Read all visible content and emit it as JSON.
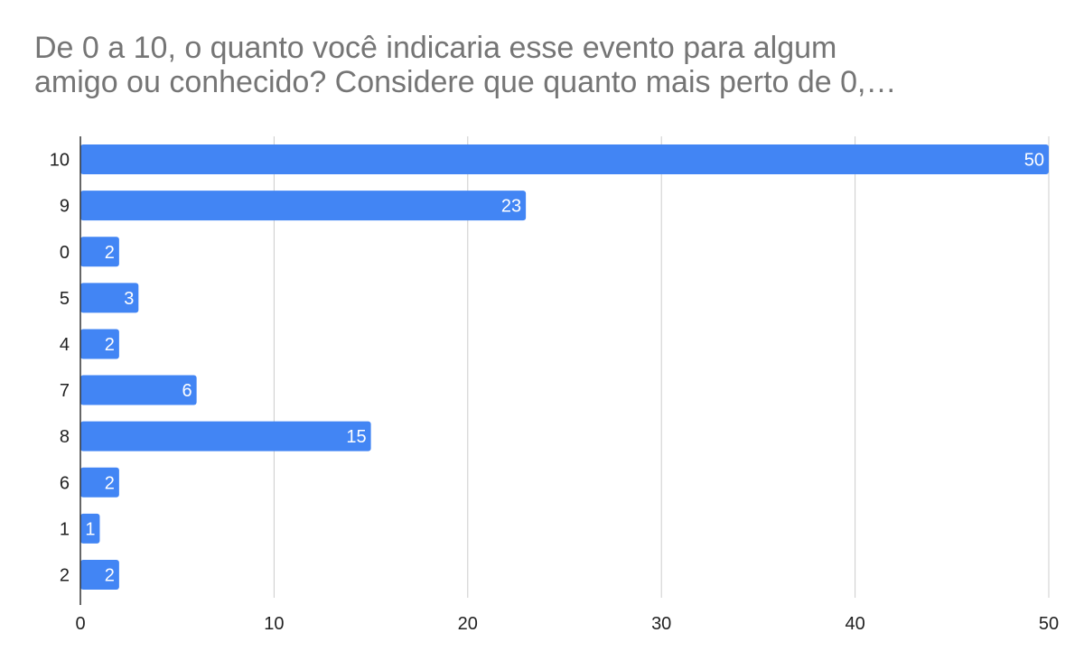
{
  "chart_data": {
    "type": "bar",
    "orientation": "horizontal",
    "title_lines": [
      "De 0 a 10, o quanto você indicaria esse evento para algum",
      "amigo ou conhecido? Considere que quanto mais perto de 0,…"
    ],
    "categories": [
      "10",
      "9",
      "0",
      "5",
      "4",
      "7",
      "8",
      "6",
      "1",
      "2"
    ],
    "values": [
      50,
      23,
      2,
      3,
      2,
      6,
      15,
      2,
      1,
      2
    ],
    "xlim": [
      0,
      50
    ],
    "x_ticks": [
      "0",
      "10",
      "20",
      "30",
      "40",
      "50"
    ],
    "grid": true,
    "legend": "none",
    "data_labels": true,
    "colors": {
      "bar": "#4285f4",
      "grid": "#cccccc",
      "axis": "#333333",
      "label": "#ffffff",
      "tick": "#222222",
      "title": "#757575"
    }
  }
}
